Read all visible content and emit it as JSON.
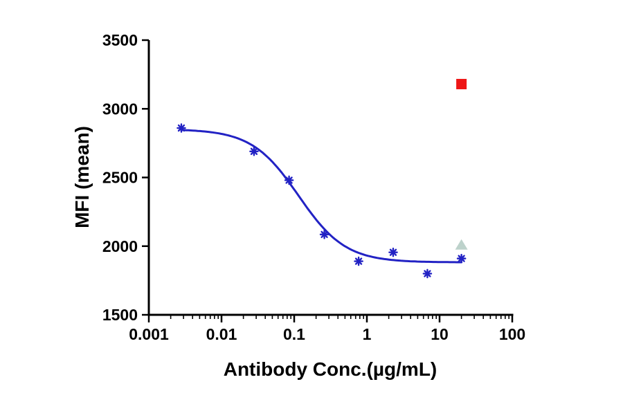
{
  "chart_data": {
    "type": "scatter",
    "title": "",
    "xlabel": "Antibody Conc.(µg/mL)",
    "ylabel": "MFI (mean)",
    "x_scale": "log",
    "xlim": [
      0.001,
      100
    ],
    "ylim": [
      1500,
      3500
    ],
    "y_ticks": [
      1500,
      2000,
      2500,
      3000,
      3500
    ],
    "y_tick_labels": [
      "1500",
      "2000",
      "2500",
      "3000",
      "3500"
    ],
    "x_ticks": [
      0.001,
      0.01,
      0.1,
      1,
      10,
      100
    ],
    "x_tick_labels": [
      "0.001",
      "0.01",
      "0.1",
      "1",
      "10",
      "100"
    ],
    "grid": false,
    "legend": "none",
    "axis_color": "#000000",
    "series": [
      {
        "name": "antibody-titration",
        "marker": "asterisk",
        "color": "#2222c4",
        "points": [
          {
            "x": 0.0028,
            "y": 2860
          },
          {
            "x": 0.028,
            "y": 2690
          },
          {
            "x": 0.085,
            "y": 2480
          },
          {
            "x": 0.26,
            "y": 2085
          },
          {
            "x": 0.77,
            "y": 1890
          },
          {
            "x": 2.3,
            "y": 1955
          },
          {
            "x": 6.8,
            "y": 1800
          },
          {
            "x": 20,
            "y": 1910
          }
        ]
      },
      {
        "name": "control-square",
        "marker": "square",
        "color": "#ee1616",
        "points": [
          {
            "x": 20,
            "y": 3180
          }
        ]
      },
      {
        "name": "control-triangle",
        "marker": "triangle",
        "color": "#bdd2cb",
        "points": [
          {
            "x": 20,
            "y": 2010
          }
        ]
      }
    ],
    "fit_curve": {
      "model": "4PL",
      "top": 2852,
      "bottom": 1882,
      "ic50": 0.115,
      "hill": 1.35,
      "x_start": 0.0028,
      "x_end": 20,
      "color": "#2222c4",
      "width": 3
    }
  }
}
